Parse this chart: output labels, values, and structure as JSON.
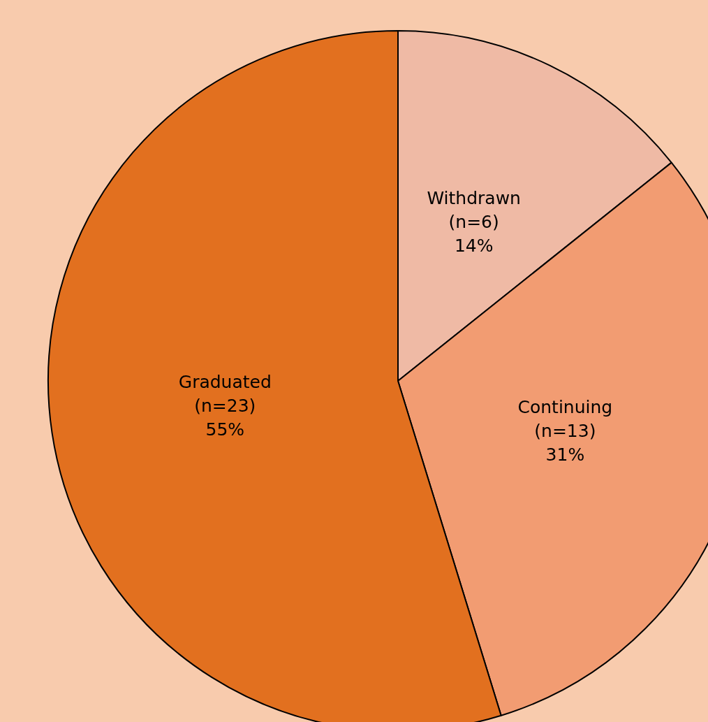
{
  "chart_data": {
    "type": "pie",
    "categories": [
      "Withdrawn",
      "Continuing",
      "Graduated"
    ],
    "values": [
      6,
      13,
      23
    ],
    "value_labels": [
      "(n=6)\n14%",
      "(n=13)\n31%",
      "(n=23)\n55%"
    ],
    "colors": [
      "#efbaa5",
      "#f29c72",
      "#e2701f"
    ],
    "legend": false
  }
}
